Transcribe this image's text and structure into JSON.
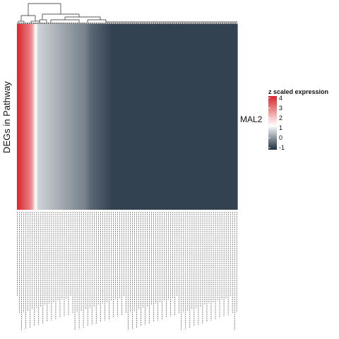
{
  "chart_data": {
    "type": "heatmap",
    "ylabel": "DEGs in Pathway",
    "row_labels": [
      "MAL2"
    ],
    "legend": {
      "title": "z scaled expression",
      "ticks": [
        4,
        3,
        2,
        1,
        0,
        -1
      ],
      "colors": {
        "high": "#d7242a",
        "mid": "#ffffff",
        "low": "#1e2f40"
      },
      "range": [
        -1.2,
        4.2
      ]
    },
    "column_count": 200,
    "column_labels": [],
    "values": [
      4.1,
      4.0,
      3.9,
      3.8,
      3.7,
      3.6,
      3.5,
      3.4,
      3.3,
      3.2,
      3.1,
      3.0,
      2.8,
      2.6,
      2.4,
      1.9,
      1.4,
      1.1,
      0.9,
      0.6,
      0.55,
      0.5,
      0.48,
      0.46,
      0.44,
      0.42,
      0.4,
      0.38,
      0.36,
      0.34,
      0.32,
      0.3,
      0.28,
      0.26,
      0.24,
      0.22,
      0.2,
      0.18,
      0.16,
      0.14,
      0.12,
      0.1,
      0.08,
      0.06,
      0.04,
      0.02,
      0.0,
      -0.02,
      -0.04,
      -0.06,
      -0.08,
      -0.1,
      -0.12,
      -0.14,
      -0.16,
      -0.18,
      -0.2,
      -0.22,
      -0.24,
      -0.25,
      -0.26,
      -0.27,
      -0.28,
      -0.3,
      -0.35,
      -0.4,
      -0.45,
      -0.5,
      -0.55,
      -0.6,
      -0.62,
      -0.64,
      -0.66,
      -0.68,
      -0.7,
      -0.72,
      -0.74,
      -0.76,
      -0.78,
      -0.8,
      -0.82,
      -0.84,
      -0.86,
      -0.88,
      -0.9,
      -0.92,
      -0.94,
      -0.96,
      -0.98,
      -1.0,
      -1.0,
      -1.0,
      -1.0,
      -1.0,
      -1.0,
      -1.0,
      -1.0,
      -1.0,
      -1.0,
      -1.0,
      -1.0,
      -1.0,
      -1.0,
      -1.0,
      -1.0,
      -1.0,
      -1.0,
      -1.0,
      -1.0,
      -1.0,
      -1.0,
      -1.0,
      -1.0,
      -1.0,
      -1.0,
      -1.0,
      -1.0,
      -1.0,
      -1.0,
      -1.0,
      -1.0,
      -1.0,
      -1.0,
      -1.0,
      -1.0,
      -1.0,
      -1.0,
      -1.0,
      -1.0,
      -1.0,
      -1.0,
      -1.0,
      -1.0,
      -1.0,
      -1.0,
      -1.0,
      -1.0,
      -1.0,
      -1.0,
      -1.0,
      -1.0,
      -1.0,
      -1.0,
      -1.0,
      -1.0,
      -1.0,
      -1.0,
      -1.0,
      -1.0,
      -1.0,
      -1.0,
      -1.0,
      -1.0,
      -1.0,
      -1.0,
      -1.0,
      -1.0,
      -1.0,
      -1.0,
      -1.0,
      -1.0,
      -1.0,
      -1.0,
      -1.0,
      -1.0,
      -1.0,
      -1.0,
      -1.0,
      -1.0,
      -1.0,
      -1.0,
      -1.0,
      -1.0,
      -1.0,
      -1.0,
      -1.0,
      -1.0,
      -1.0,
      -1.0,
      -1.0,
      -1.0,
      -1.0,
      -1.0,
      -1.0,
      -1.0,
      -1.0,
      -1.0,
      -1.0,
      -1.0,
      -1.0,
      -1.0,
      -1.0,
      -1.0,
      -1.0,
      -1.0,
      -1.0,
      -1.0,
      -1.0,
      -1.0,
      -1.0,
      -1.0,
      -1.0,
      -1.0,
      -1.0,
      -1.0,
      -1.0,
      -1.0
    ],
    "grid": false,
    "legend_position": "right",
    "column_dendrogram": true
  }
}
